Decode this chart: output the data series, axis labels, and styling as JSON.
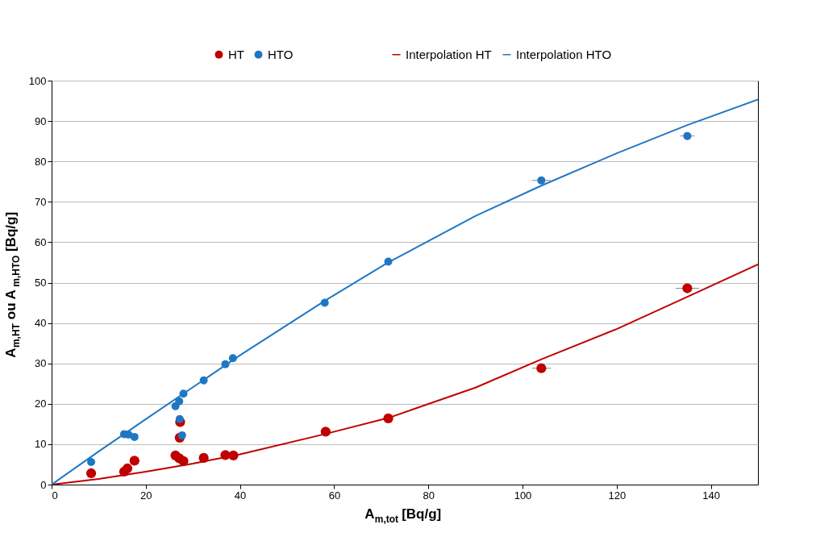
{
  "chart_data": {
    "type": "scatter",
    "xlabel": "A$_{m,tot}$ [Bq/g]",
    "ylabel": "A$_{m,HT}$ ou A$_{m,HTO}$ [Bq/g]",
    "xlim": [
      0,
      150
    ],
    "xticks": [
      0,
      20,
      40,
      60,
      80,
      100,
      120,
      140
    ],
    "ylim": [
      0,
      100
    ],
    "yticks": [
      0,
      10,
      20,
      30,
      40,
      50,
      60,
      70,
      80,
      90,
      100
    ],
    "grid": "y",
    "legend": "top",
    "series": [
      {
        "name": "HT",
        "marker": "circle",
        "color": "#c00000",
        "x": [
          8.4,
          15.4,
          16.1,
          17.6,
          26.3,
          27.1,
          28.0,
          27.3,
          27.2,
          32.3,
          36.9,
          38.6,
          58.2,
          71.5,
          104,
          135
        ],
        "values": [
          2.8,
          3.2,
          4.0,
          5.9,
          7.2,
          6.5,
          5.8,
          15.5,
          11.6,
          6.6,
          7.3,
          7.2,
          13.1,
          16.4,
          28.8,
          48.6
        ],
        "xerrors": [
          null,
          null,
          null,
          null,
          null,
          null,
          null,
          null,
          null,
          null,
          null,
          null,
          null,
          null,
          2,
          2.5
        ]
      },
      {
        "name": "HTO",
        "marker": "circle",
        "color": "#1f77c4",
        "x": [
          8.4,
          15.4,
          16.3,
          17.6,
          26.3,
          27.1,
          28.0,
          27.2,
          27.7,
          32.3,
          36.9,
          38.5,
          58.0,
          71.5,
          104,
          135
        ],
        "values": [
          5.6,
          12.5,
          12.4,
          11.8,
          19.4,
          20.6,
          22.5,
          16.2,
          12.2,
          25.8,
          29.8,
          31.3,
          45.0,
          55.2,
          75.3,
          86.3
        ],
        "xerrors": [
          null,
          null,
          null,
          null,
          null,
          null,
          null,
          null,
          null,
          null,
          null,
          null,
          null,
          null,
          2,
          1.5
        ]
      },
      {
        "name": "Interpolation HT",
        "type": "line",
        "marker": "none",
        "color": "#c00000",
        "x": [
          0,
          10,
          20,
          30,
          40,
          58,
          71.5,
          90,
          104,
          120,
          135,
          150
        ],
        "values": [
          0,
          1.4,
          3.2,
          5.2,
          7.5,
          12.5,
          16.5,
          24.0,
          31.0,
          38.5,
          46.5,
          54.5
        ]
      },
      {
        "name": "Interpolation HTO",
        "type": "line",
        "marker": "none",
        "color": "#1f77c4",
        "x": [
          0,
          10,
          20,
          40,
          58,
          71.5,
          90,
          104,
          120,
          135,
          150
        ],
        "values": [
          0,
          8.2,
          16.2,
          32.0,
          45.5,
          55.0,
          66.5,
          74.0,
          82.0,
          89.0,
          95.3
        ]
      }
    ]
  }
}
